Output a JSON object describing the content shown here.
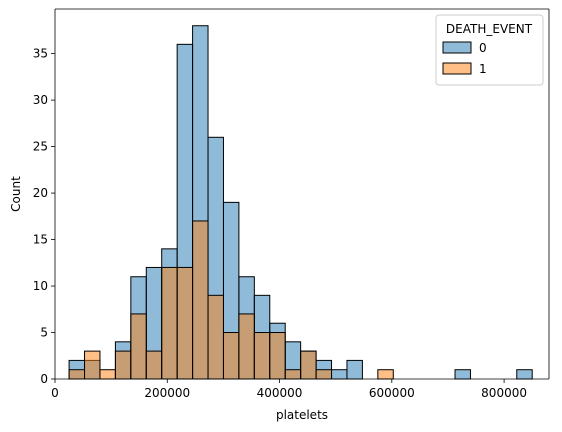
{
  "chart_data": {
    "type": "bar",
    "title": "",
    "xlabel": "platelets",
    "ylabel": "Count",
    "xlim": [
      0,
      880000
    ],
    "ylim": [
      0,
      39.8
    ],
    "x_ticks": [
      0,
      200000,
      400000,
      600000,
      800000
    ],
    "x_tick_labels": [
      "0",
      "200000",
      "400000",
      "600000",
      "800000"
    ],
    "y_ticks": [
      0,
      5,
      10,
      15,
      20,
      25,
      30,
      35
    ],
    "y_tick_labels": [
      "0",
      "5",
      "10",
      "15",
      "20",
      "25",
      "30",
      "35"
    ],
    "grid": false,
    "legend": {
      "title": "DEATH_EVENT",
      "position": "top-right"
    },
    "bin_start": 25100,
    "bin_width": 27500,
    "series": [
      {
        "name": "0",
        "color": "#1f77b4",
        "counts": [
          2,
          2,
          0,
          4,
          11,
          12,
          14,
          36,
          38,
          26,
          19,
          11,
          9,
          6,
          4,
          3,
          2,
          1,
          2,
          0,
          0,
          0,
          0,
          0,
          0,
          1,
          0,
          0,
          0,
          1
        ]
      },
      {
        "name": "1",
        "color": "#ff7f0e",
        "counts": [
          1,
          3,
          1,
          3,
          7,
          3,
          12,
          12,
          17,
          9,
          5,
          7,
          5,
          5,
          1,
          3,
          1,
          0,
          0,
          0,
          1,
          0,
          0,
          0,
          0,
          0,
          0,
          0,
          0,
          0
        ]
      }
    ]
  }
}
